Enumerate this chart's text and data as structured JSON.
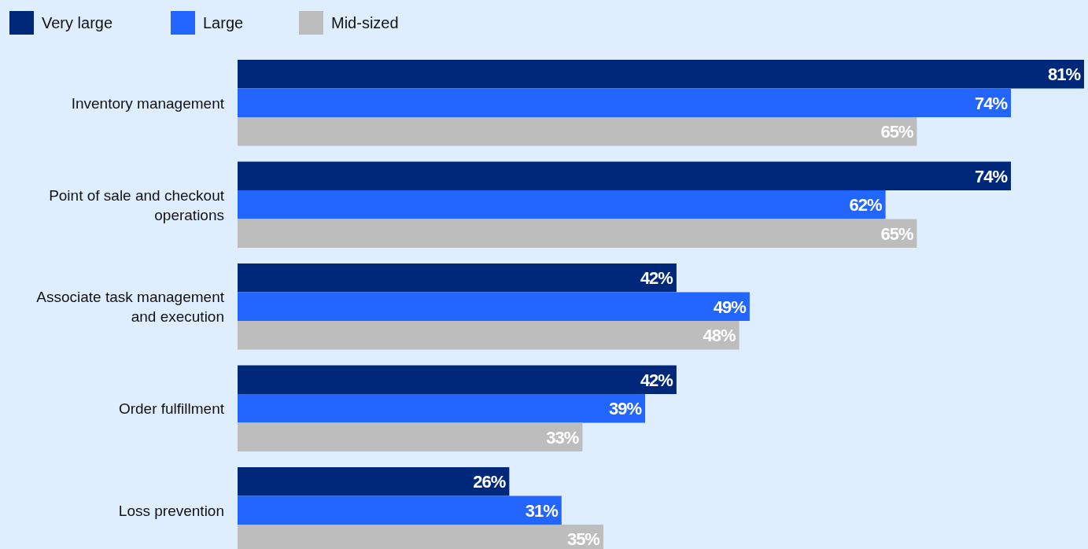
{
  "chart_data": {
    "type": "bar",
    "orientation": "horizontal",
    "legend": "top left",
    "categories": [
      "Inventory management",
      "Point of sale and checkout operations",
      "Associate task management and execution",
      "Order fulfillment",
      "Loss prevention"
    ],
    "series": [
      {
        "name": "Very large",
        "color": "#00287a",
        "values": [
          81,
          74,
          42,
          42,
          26
        ],
        "value_labels": [
          "81%",
          "74%",
          "42%",
          "42%",
          "26%"
        ]
      },
      {
        "name": "Large",
        "color": "#2266ff",
        "values": [
          74,
          62,
          49,
          39,
          31
        ],
        "value_labels": [
          "74%",
          "62%",
          "49%",
          "39%",
          "31%"
        ]
      },
      {
        "name": "Mid-sized",
        "color": "#bdbdbd",
        "values": [
          65,
          65,
          48,
          33,
          35
        ],
        "value_labels": [
          "65%",
          "65%",
          "48%",
          "33%",
          "35%"
        ]
      }
    ]
  }
}
